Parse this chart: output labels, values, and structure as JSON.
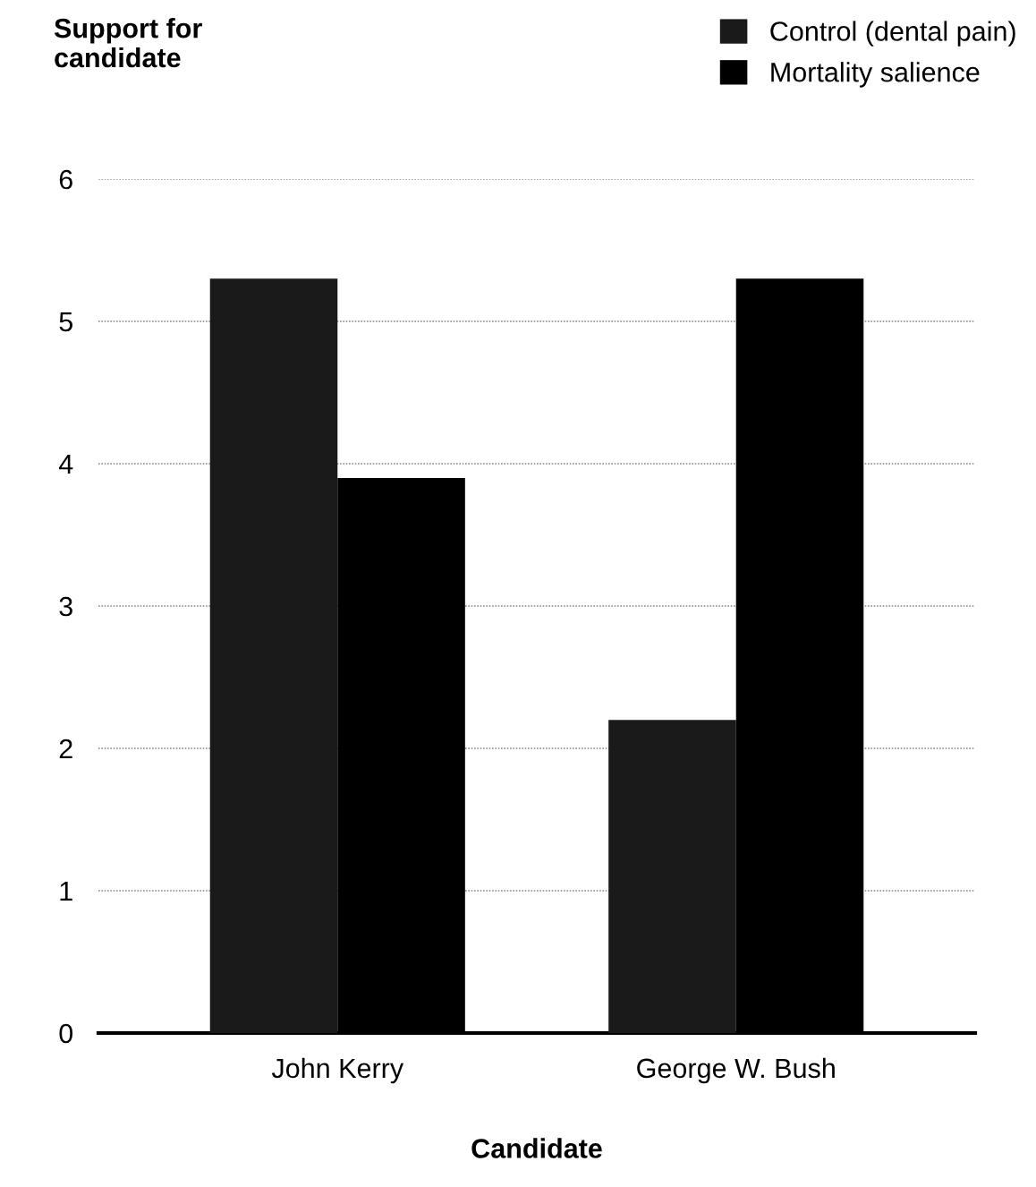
{
  "chart_data": {
    "type": "bar",
    "annotations": [
      "Support for\ncandidate"
    ],
    "xlabel": "Candidate",
    "categories": [
      "John Kerry",
      "George W. Bush"
    ],
    "series": [
      {
        "name": "Control (dental pain)",
        "color": "#1a1a1a",
        "values": [
          5.3,
          2.2
        ]
      },
      {
        "name": "Mortality salience",
        "color": "#000000",
        "values": [
          3.9,
          5.3
        ]
      }
    ],
    "ylim": [
      0,
      6
    ],
    "yticks": [
      0,
      1,
      2,
      3,
      4,
      5,
      6
    ],
    "grid": "y",
    "legend": "top right"
  }
}
